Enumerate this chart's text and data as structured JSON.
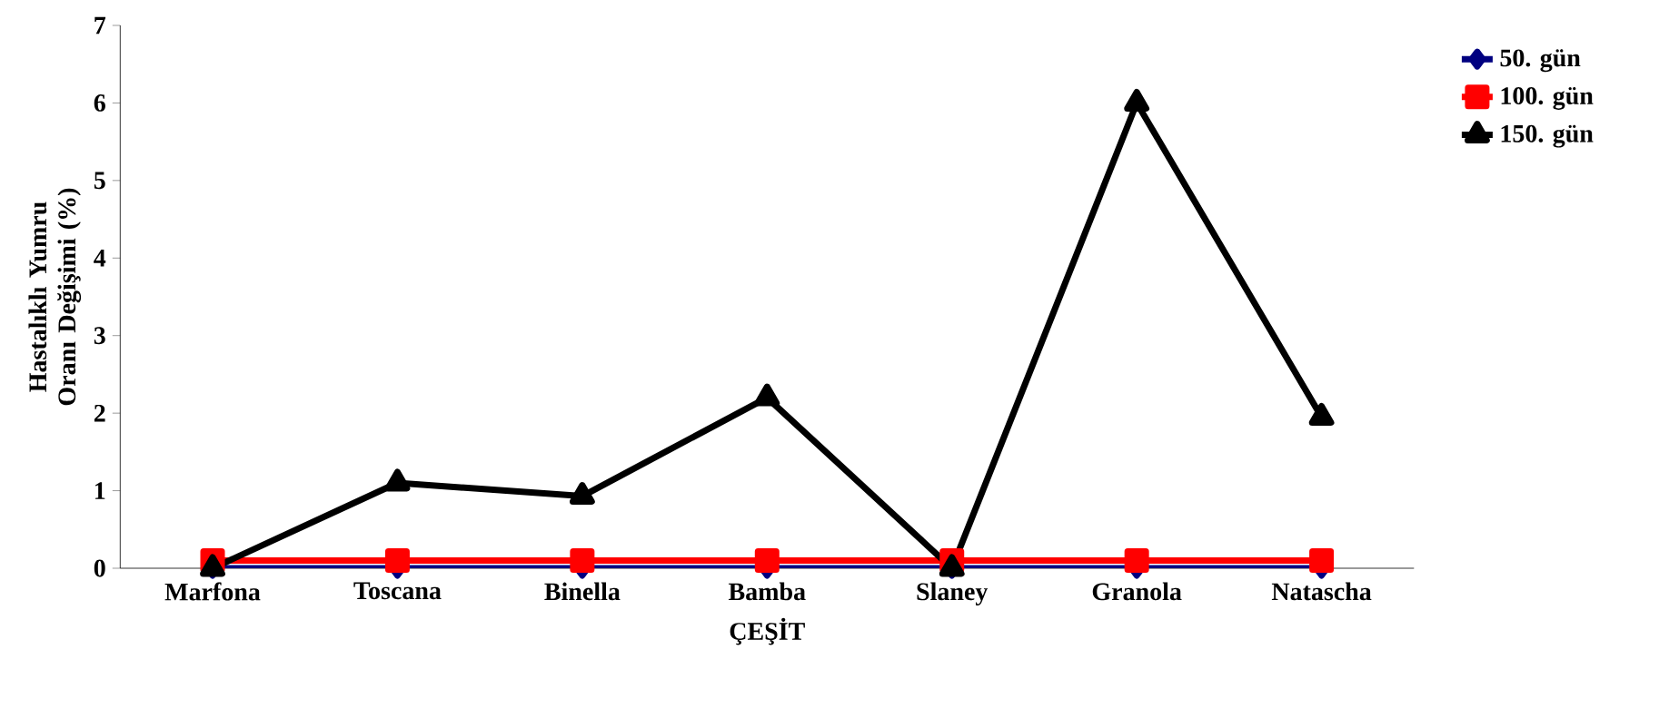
{
  "chart_data": {
    "type": "line",
    "xlabel": "ÇEŞİT",
    "ylabel": "Hastalıklı Yumru Oranı Değişimi (%)",
    "categories": [
      "Marfona",
      "Toscana",
      "Binella",
      "Bamba",
      "Slaney",
      "Granola",
      "Natascha"
    ],
    "series": [
      {
        "name": "50. gün",
        "color": "#000080",
        "marker": "diamond",
        "values": [
          0,
          0,
          0,
          0,
          0,
          0,
          0
        ]
      },
      {
        "name": "100. gün",
        "color": "#ff0000",
        "marker": "square",
        "values": [
          0.1,
          0.1,
          0.1,
          0.1,
          0.1,
          0.1,
          0.1
        ]
      },
      {
        "name": "150. gün",
        "color": "#000000",
        "marker": "triangle",
        "values": [
          0,
          1.1,
          0.93,
          2.2,
          0,
          6.0,
          1.95
        ]
      }
    ],
    "ylim": [
      0,
      7
    ],
    "yticks": [
      0,
      1,
      2,
      3,
      4,
      5,
      6,
      7
    ],
    "grid": false,
    "legend": "top right",
    "line_style": "solid"
  }
}
